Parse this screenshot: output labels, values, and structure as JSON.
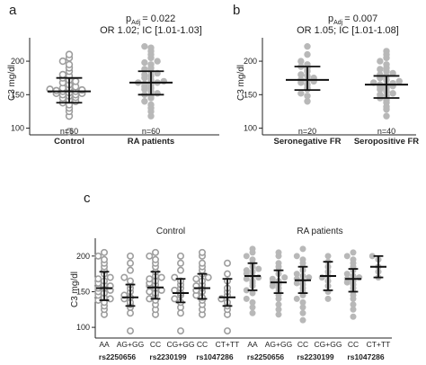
{
  "colors": {
    "control_marker": "#9e9e9e",
    "ra_marker": "#b8b8b8",
    "summary_bars": "#111111",
    "axis": "#222222"
  },
  "chart_data": [
    {
      "type": "scatter",
      "panel_letter": "a",
      "stat_p": "p",
      "stat_sub": "Adj",
      "stat_p_value": "= 0.022",
      "stat_or_line": "OR 1.02; IC [1.01-1.03]",
      "ylabel": "C3 mg/dl",
      "ylim": [
        90,
        235
      ],
      "yticks": [
        100,
        150,
        200
      ],
      "ytick_labels": [
        "100",
        "150",
        "200"
      ],
      "categories": [
        "Control",
        "RA patients"
      ],
      "n_labels": [
        "n=60",
        "n=60"
      ],
      "marker_style": [
        "open",
        "filled"
      ],
      "summary": [
        {
          "median": 155,
          "lower": 138,
          "upper": 175
        },
        {
          "median": 168,
          "lower": 150,
          "upper": 185
        }
      ],
      "points": [
        [
          95,
          118,
          125,
          130,
          135,
          138,
          140,
          142,
          145,
          146,
          148,
          150,
          150,
          152,
          152,
          153,
          155,
          155,
          156,
          157,
          158,
          160,
          160,
          162,
          165,
          168,
          170,
          172,
          175,
          178,
          180,
          185,
          190,
          195,
          200,
          205,
          210
        ],
        [
          118,
          125,
          130,
          135,
          140,
          145,
          148,
          150,
          152,
          155,
          158,
          160,
          162,
          165,
          166,
          168,
          168,
          170,
          172,
          175,
          178,
          180,
          182,
          185,
          188,
          190,
          195,
          198,
          200,
          205,
          210,
          215,
          220,
          222
        ]
      ]
    },
    {
      "type": "scatter",
      "panel_letter": "b",
      "stat_p": "p",
      "stat_sub": "Adj",
      "stat_p_value": "= 0.007",
      "stat_or_line": "OR 1.05; IC [1.01-1.08]",
      "ylabel": "C3 mg/dl",
      "ylim": [
        90,
        235
      ],
      "yticks": [
        100,
        150,
        200
      ],
      "ytick_labels": [
        "100",
        "150",
        "200"
      ],
      "categories": [
        "Seronegative FR",
        "Seropositive FR"
      ],
      "n_labels": [
        "n=20",
        "n=40"
      ],
      "marker_style": [
        "filled",
        "filled"
      ],
      "summary": [
        {
          "median": 172,
          "lower": 157,
          "upper": 192
        },
        {
          "median": 165,
          "lower": 145,
          "upper": 178
        }
      ],
      "points": [
        [
          140,
          148,
          152,
          158,
          160,
          165,
          168,
          170,
          172,
          172,
          175,
          178,
          180,
          185,
          190,
          192,
          195,
          200,
          210,
          222
        ],
        [
          118,
          128,
          132,
          138,
          142,
          145,
          148,
          150,
          152,
          155,
          158,
          160,
          162,
          163,
          165,
          165,
          167,
          168,
          170,
          172,
          175,
          178,
          180,
          182,
          185,
          188,
          190,
          195,
          200,
          205,
          210,
          215
        ]
      ]
    },
    {
      "type": "scatter",
      "panel_letter": "c",
      "ylabel": "C3 mg/dl",
      "ylim": [
        85,
        225
      ],
      "yticks": [
        100,
        150,
        200
      ],
      "ytick_labels": [
        "100",
        "150",
        "200"
      ],
      "group_labels": [
        "Control",
        "RA patients"
      ],
      "categories": [
        "AA",
        "AG+GG",
        "CC",
        "CG+GG",
        "CC",
        "CT+TT",
        "AA",
        "AG+GG",
        "CC",
        "CG+GG",
        "CC",
        "CT+TT"
      ],
      "snp_labels": [
        "rs2250656",
        "rs2230199",
        "rs1047286",
        "rs2250656",
        "rs2230199",
        "rs1047286"
      ],
      "marker_style": [
        "open",
        "open",
        "open",
        "open",
        "open",
        "open",
        "filled",
        "filled",
        "filled",
        "filled",
        "filled",
        "filled"
      ],
      "summary": [
        {
          "median": 155,
          "lower": 138,
          "upper": 178
        },
        {
          "median": 142,
          "lower": 130,
          "upper": 160
        },
        {
          "median": 156,
          "lower": 140,
          "upper": 178
        },
        {
          "median": 148,
          "lower": 135,
          "upper": 168
        },
        {
          "median": 155,
          "lower": 140,
          "upper": 175
        },
        {
          "median": 142,
          "lower": 130,
          "upper": 168
        },
        {
          "median": 172,
          "lower": 152,
          "upper": 190
        },
        {
          "median": 163,
          "lower": 148,
          "upper": 180
        },
        {
          "median": 166,
          "lower": 148,
          "upper": 185
        },
        {
          "median": 172,
          "lower": 152,
          "upper": 192
        },
        {
          "median": 168,
          "lower": 150,
          "upper": 182
        },
        {
          "median": 185,
          "lower": 170,
          "upper": 200
        }
      ],
      "points": [
        [
          118,
          125,
          130,
          135,
          138,
          140,
          142,
          145,
          148,
          150,
          152,
          155,
          155,
          158,
          160,
          162,
          165,
          168,
          170,
          175,
          180,
          185,
          190,
          195,
          200,
          205
        ],
        [
          95,
          120,
          128,
          132,
          135,
          140,
          142,
          145,
          150,
          155,
          160,
          165,
          170,
          180,
          190,
          200
        ],
        [
          118,
          125,
          132,
          138,
          140,
          145,
          148,
          150,
          152,
          155,
          158,
          160,
          162,
          165,
          168,
          170,
          172,
          178,
          185,
          190,
          195,
          200,
          205
        ],
        [
          95,
          120,
          128,
          135,
          140,
          145,
          148,
          152,
          155,
          160,
          165,
          170,
          180,
          190,
          200
        ],
        [
          118,
          125,
          132,
          138,
          142,
          145,
          150,
          152,
          155,
          158,
          160,
          165,
          168,
          170,
          175,
          180,
          185,
          190,
          200,
          205
        ],
        [
          95,
          118,
          125,
          130,
          135,
          140,
          145,
          150,
          155,
          165,
          175,
          190
        ],
        [
          120,
          128,
          135,
          140,
          148,
          152,
          158,
          162,
          165,
          168,
          170,
          172,
          175,
          178,
          180,
          182,
          185,
          190,
          195,
          200,
          205,
          210
        ],
        [
          118,
          125,
          132,
          140,
          145,
          150,
          155,
          158,
          160,
          163,
          165,
          168,
          170,
          175,
          180,
          185,
          190,
          200,
          205
        ],
        [
          110,
          120,
          128,
          135,
          140,
          145,
          150,
          155,
          160,
          162,
          165,
          168,
          170,
          172,
          175,
          180,
          185,
          190,
          195,
          200,
          210
        ],
        [
          140,
          150,
          158,
          165,
          170,
          172,
          178,
          185,
          192,
          200
        ],
        [
          115,
          125,
          132,
          140,
          145,
          150,
          155,
          160,
          163,
          165,
          168,
          170,
          172,
          175,
          180,
          185,
          190,
          195,
          200,
          205
        ],
        [
          170,
          178,
          185,
          195,
          200
        ]
      ]
    }
  ]
}
